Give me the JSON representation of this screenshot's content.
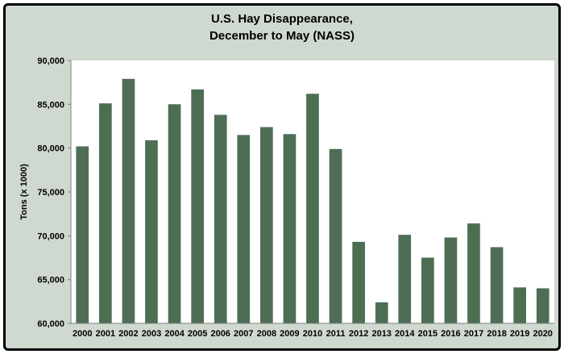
{
  "chart_data": {
    "type": "bar",
    "title_lines": [
      "U.S. Hay Disappearance,",
      "December to May  (NASS)"
    ],
    "xlabel": "",
    "ylabel": "Tons (x 1000)",
    "categories": [
      "2000",
      "2001",
      "2002",
      "2003",
      "2004",
      "2005",
      "2006",
      "2007",
      "2008",
      "2009",
      "2010",
      "2011",
      "2012",
      "2013",
      "2014",
      "2015",
      "2016",
      "2017",
      "2018",
      "2019",
      "2020"
    ],
    "values": [
      80200,
      85100,
      87900,
      80900,
      85000,
      86700,
      83800,
      81500,
      82400,
      81600,
      86200,
      79900,
      69300,
      62400,
      70100,
      67500,
      69800,
      71400,
      68700,
      64100,
      64000
    ],
    "ylim": [
      60000,
      90000
    ],
    "yticks": [
      "60,000",
      "65,000",
      "70,000",
      "75,000",
      "80,000",
      "85,000",
      "90,000"
    ],
    "grid": false,
    "legend": "none",
    "colors": {
      "bar": "#4e6e54",
      "plot_bg": "#ffffff",
      "frame_bg": "#cfd9cf",
      "axis": "#7f7f7f"
    }
  }
}
